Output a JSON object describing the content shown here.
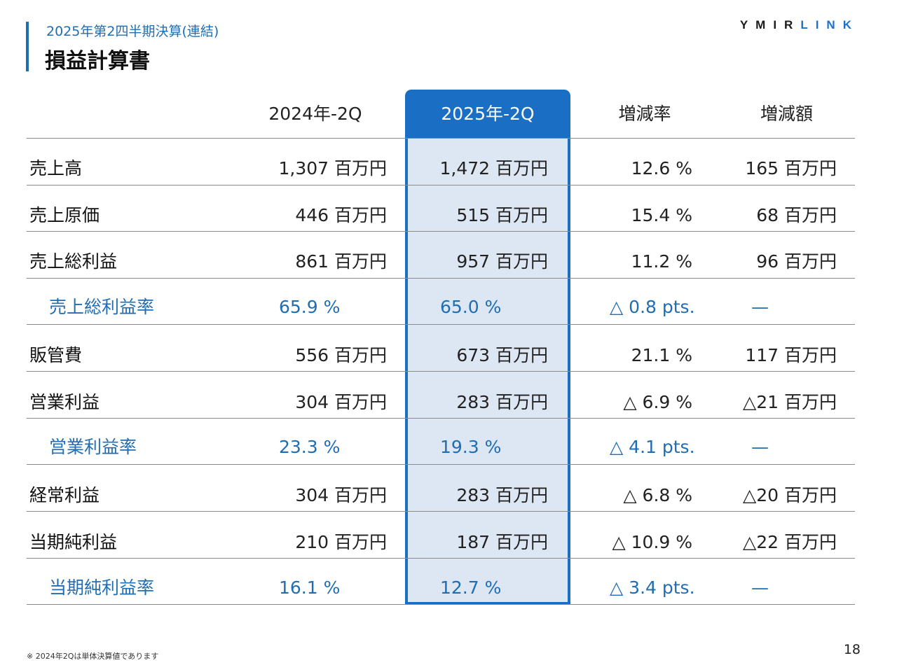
{
  "header": {
    "subtitle": "2025年第2四半期決算(連結)",
    "title": "損益計算書",
    "logo_part1": "YMIR",
    "logo_part2": "LINK"
  },
  "columns": [
    "2024年-2Q",
    "2025年-2Q",
    "増減率",
    "増減額"
  ],
  "rows": [
    {
      "label": "売上高",
      "v2024": "1,307 百万円",
      "v2025": "1,472 百万円",
      "rate": "12.6 %",
      "amount": "165 百万円"
    },
    {
      "label": "売上原価",
      "v2024": "446 百万円",
      "v2025": "515 百万円",
      "rate": "15.4 %",
      "amount": "68 百万円"
    },
    {
      "label": "売上総利益",
      "v2024": "861 百万円",
      "v2025": "957 百万円",
      "rate": "11.2 %",
      "amount": "96 百万円"
    },
    {
      "label": "売上総利益率",
      "v2024": "65.9 %",
      "v2025": "65.0 %",
      "rate": "△ 0.8 pts.",
      "amount": "—"
    },
    {
      "label": "販管費",
      "v2024": "556 百万円",
      "v2025": "673 百万円",
      "rate": "21.1 %",
      "amount": "117 百万円"
    },
    {
      "label": "営業利益",
      "v2024": "304 百万円",
      "v2025": "283 百万円",
      "rate": "△ 6.9 %",
      "amount": "△21 百万円"
    },
    {
      "label": "営業利益率",
      "v2024": "23.3 %",
      "v2025": "19.3 %",
      "rate": "△ 4.1 pts.",
      "amount": "—"
    },
    {
      "label": "経常利益",
      "v2024": "304 百万円",
      "v2025": "283 百万円",
      "rate": "△ 6.8 %",
      "amount": "△20 百万円"
    },
    {
      "label": "当期純利益",
      "v2024": "210 百万円",
      "v2025": "187 百万円",
      "rate": "△ 10.9 %",
      "amount": "△22 百万円"
    },
    {
      "label": "当期純利益率",
      "v2024": "16.1 %",
      "v2025": "12.7 %",
      "rate": "△ 3.4 pts.",
      "amount": "—"
    }
  ],
  "footnote": "※ 2024年2Qは単体決算値であります",
  "page_number": "18",
  "colors": {
    "accent": "#1f6db3",
    "highlight_header": "#1a6fc4",
    "highlight_fill": "#dde6f3"
  }
}
